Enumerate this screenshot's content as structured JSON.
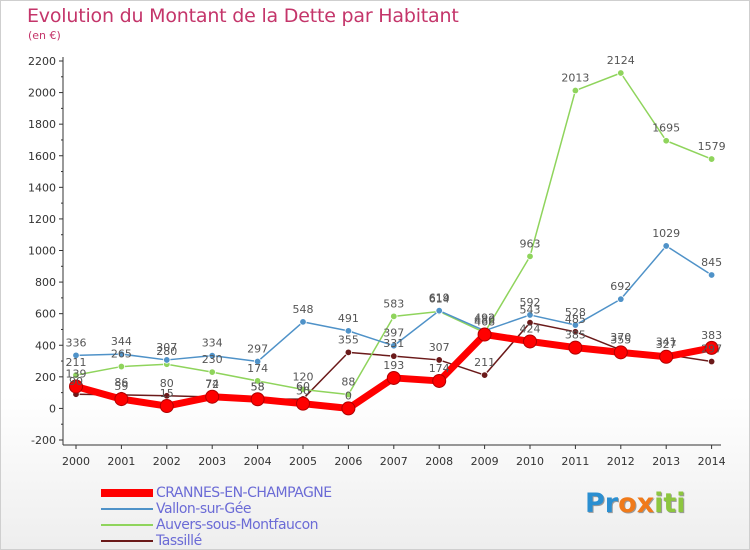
{
  "header": {
    "title": "Evolution du Montant de la Dette par Habitant",
    "unit": "(en €)"
  },
  "logo": {
    "text": "Proxiti",
    "letter_colors": [
      "#2b8fd1",
      "#2b8fd1",
      "#f07a1a",
      "#f07a1a",
      "#8dc63f",
      "#8dc63f",
      "#8dc63f"
    ]
  },
  "chart_data": {
    "type": "line",
    "title": "Evolution du Montant de la Dette par Habitant",
    "ylabel": "(en €)",
    "xlabel": "",
    "x": [
      "2000",
      "2001",
      "2002",
      "2003",
      "2004",
      "2005",
      "2006",
      "2007",
      "2008",
      "2009",
      "2010",
      "2011",
      "2012",
      "2013",
      "2014"
    ],
    "ylim": [
      -200,
      2200
    ],
    "yticks": [
      "-200",
      "0",
      "200",
      "400",
      "600",
      "800",
      "1000",
      "1200",
      "1400",
      "1600",
      "1800",
      "2000",
      "2200"
    ],
    "grid": false,
    "legend_position": "bottom-left",
    "series": [
      {
        "name": "CRANNES-EN-CHAMPAGNE",
        "color": "#ff0000",
        "values": [
          139,
          59,
          15,
          74,
          58,
          30,
          0,
          193,
          174,
          468,
          424,
          385,
          355,
          327,
          383
        ]
      },
      {
        "name": "Vallon-sur-Gée",
        "color": "#4f92c8",
        "values": [
          336,
          344,
          307,
          334,
          297,
          548,
          491,
          397,
          619,
          492,
          592,
          528,
          692,
          1029,
          845
        ]
      },
      {
        "name": "Auvers-sous-Montfaucon",
        "color": "#8fd45c",
        "values": [
          211,
          265,
          280,
          230,
          174,
          120,
          88,
          583,
          614,
          480,
          963,
          2013,
          2124,
          1695,
          1579
        ]
      },
      {
        "name": "Tassillé",
        "color": "#6b1a1a",
        "values": [
          90,
          86,
          80,
          72,
          58,
          60,
          355,
          331,
          307,
          211,
          543,
          485,
          370,
          341,
          297
        ]
      }
    ]
  }
}
